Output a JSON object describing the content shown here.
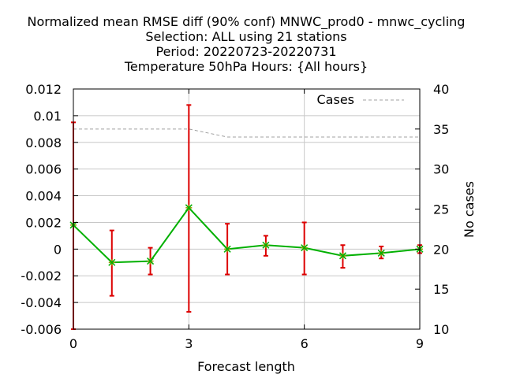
{
  "chart_data": {
    "type": "line",
    "title": [
      "Normalized mean RMSE diff (90% conf) MNWC_prod0 - mnwc_cycling",
      "Selection: ALL using    21 stations",
      "Period: 20220723-20220731",
      "Temperature 50hPa   Hours: {All hours}"
    ],
    "xlabel": "Forecast length",
    "ylabel": "",
    "y2label": "No cases",
    "xlim": [
      0,
      9
    ],
    "ylim": [
      -0.006,
      0.012
    ],
    "y2lim": [
      10,
      40
    ],
    "x_ticks": [
      "0",
      "3",
      "6",
      "9"
    ],
    "y_ticks": [
      "-0.006",
      "-0.004",
      "-0.002",
      "0",
      "0.002",
      "0.004",
      "0.006",
      "0.008",
      "0.01",
      "0.012"
    ],
    "y2_ticks": [
      "10",
      "15",
      "20",
      "25",
      "30",
      "35",
      "40"
    ],
    "grid": true,
    "legend_position": "top-right",
    "series": [
      {
        "axis": "y",
        "color": "#00b000",
        "marker_color": "#9a9a00",
        "error_color": "#dd0000",
        "x": [
          0,
          1,
          2,
          3,
          4,
          5,
          6,
          7,
          8,
          9
        ],
        "values": [
          0.0018,
          -0.001,
          -0.0009,
          0.0031,
          0.0,
          0.0003,
          0.0001,
          -0.0005,
          -0.0003,
          0.0
        ],
        "err_low": [
          -0.006,
          -0.0035,
          -0.0019,
          -0.0047,
          -0.0019,
          -0.0005,
          -0.0019,
          -0.0014,
          -0.0007,
          -0.0003
        ],
        "err_high": [
          0.0095,
          0.0014,
          0.0001,
          0.0108,
          0.0019,
          0.001,
          0.002,
          0.0003,
          0.0002,
          0.0003
        ]
      },
      {
        "name": "Cases",
        "axis": "y2",
        "color": "#a0a0a0",
        "x": [
          0,
          1,
          2,
          3,
          4,
          5,
          6,
          7,
          8,
          9
        ],
        "values": [
          35,
          35,
          35,
          35,
          34,
          34,
          34,
          34,
          34,
          34
        ]
      }
    ]
  }
}
